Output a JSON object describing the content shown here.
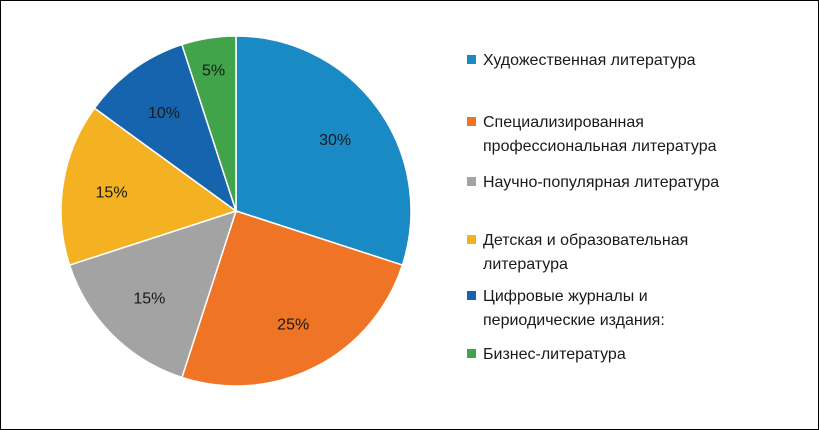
{
  "chart_data": {
    "type": "pie",
    "categories": [
      "Художественная литература",
      "Специализированная профессиональная литература",
      "Научно-популярная литература",
      "Детская и образовательная литература",
      "Цифровые журналы и периодические издания:",
      "Бизнес-литература"
    ],
    "values": [
      30,
      25,
      15,
      15,
      10,
      5
    ],
    "value_labels": [
      "30%",
      "25%",
      "15%",
      "15%",
      "10%",
      "5%"
    ],
    "colors": [
      "#1a8ac4",
      "#ef7425",
      "#a3a3a3",
      "#f4b223",
      "#1764ae",
      "#41a34a"
    ],
    "legend_position": "right",
    "start_angle": "12 o'clock",
    "direction": "clockwise"
  },
  "legend": {
    "items": [
      {
        "lines": [
          "Художественная литература"
        ]
      },
      {
        "lines": [
          "Специализированная",
          "профессиональная литература"
        ]
      },
      {
        "lines": [
          "Научно-популярная литература"
        ]
      },
      {
        "lines": [
          "Детская и образовательная",
          "литература"
        ]
      },
      {
        "lines": [
          "Цифровые журналы и",
          "периодические издания:"
        ]
      },
      {
        "lines": [
          "Бизнес-литература"
        ]
      }
    ]
  }
}
